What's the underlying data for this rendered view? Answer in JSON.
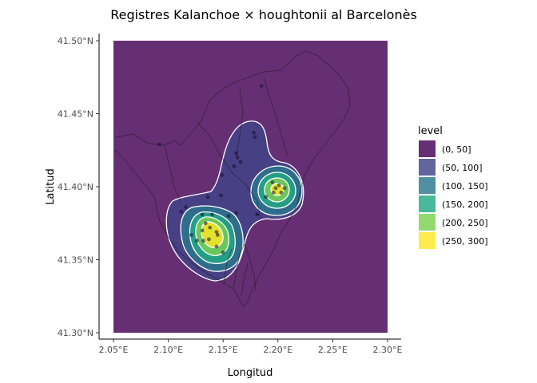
{
  "chart_data": {
    "type": "heatmap",
    "subtype": "2d-density-contour-map",
    "title": "Registres Kalanchoe × houghtonii al Barcelonès",
    "xlabel": "Longitud",
    "ylabel": "Latitud",
    "xlim": [
      2.05,
      2.3
    ],
    "ylim": [
      41.3,
      41.5
    ],
    "x_ticks": [
      2.05,
      2.1,
      2.15,
      2.2,
      2.25,
      2.3
    ],
    "x_tick_labels": [
      "2.05°E",
      "2.10°E",
      "2.15°E",
      "2.20°E",
      "2.25°E",
      "2.30°E"
    ],
    "y_ticks": [
      41.3,
      41.35,
      41.4,
      41.45,
      41.5
    ],
    "y_tick_labels": [
      "41.30°N",
      "41.35°N",
      "41.40°N",
      "41.45°N",
      "41.50°N"
    ],
    "grid": false,
    "legend": {
      "title": "level",
      "position": "right",
      "entries": [
        {
          "label": "(0, 50]",
          "color": "#440154"
        },
        {
          "label": "(50, 100]",
          "color": "#414487"
        },
        {
          "label": "(100, 150]",
          "color": "#2A788E"
        },
        {
          "label": "(150, 200]",
          "color": "#22A884"
        },
        {
          "label": "(200, 250]",
          "color": "#7AD151"
        },
        {
          "label": "(250, 300]",
          "color": "#FDE725"
        }
      ]
    },
    "density_peaks": [
      {
        "x": 2.136,
        "y": 41.368,
        "max_level": "(250, 300]"
      },
      {
        "x": 2.2,
        "y": 41.398,
        "max_level": "(250, 300]"
      }
    ],
    "points": [
      {
        "x": 2.092,
        "y": 41.429
      },
      {
        "x": 2.185,
        "y": 41.469
      },
      {
        "x": 2.178,
        "y": 41.437
      },
      {
        "x": 2.179,
        "y": 41.434
      },
      {
        "x": 2.162,
        "y": 41.423
      },
      {
        "x": 2.163,
        "y": 41.42
      },
      {
        "x": 2.166,
        "y": 41.417
      },
      {
        "x": 2.16,
        "y": 41.414
      },
      {
        "x": 2.149,
        "y": 41.408
      },
      {
        "x": 2.136,
        "y": 41.393
      },
      {
        "x": 2.148,
        "y": 41.394
      },
      {
        "x": 2.112,
        "y": 41.383
      },
      {
        "x": 2.116,
        "y": 41.386
      },
      {
        "x": 2.131,
        "y": 41.381
      },
      {
        "x": 2.14,
        "y": 41.381
      },
      {
        "x": 2.155,
        "y": 41.38
      },
      {
        "x": 2.162,
        "y": 41.382
      },
      {
        "x": 2.134,
        "y": 41.375
      },
      {
        "x": 2.138,
        "y": 41.372
      },
      {
        "x": 2.131,
        "y": 41.37
      },
      {
        "x": 2.144,
        "y": 41.369
      },
      {
        "x": 2.137,
        "y": 41.364
      },
      {
        "x": 2.132,
        "y": 41.363
      },
      {
        "x": 2.145,
        "y": 41.367
      },
      {
        "x": 2.121,
        "y": 41.367
      },
      {
        "x": 2.126,
        "y": 41.363
      },
      {
        "x": 2.144,
        "y": 41.359
      },
      {
        "x": 2.15,
        "y": 41.355
      },
      {
        "x": 2.181,
        "y": 41.381
      },
      {
        "x": 2.198,
        "y": 41.399
      },
      {
        "x": 2.201,
        "y": 41.401
      },
      {
        "x": 2.203,
        "y": 41.396
      },
      {
        "x": 2.196,
        "y": 41.396
      },
      {
        "x": 2.206,
        "y": 41.399
      },
      {
        "x": 2.195,
        "y": 41.403
      },
      {
        "x": 2.189,
        "y": 41.393
      }
    ]
  }
}
